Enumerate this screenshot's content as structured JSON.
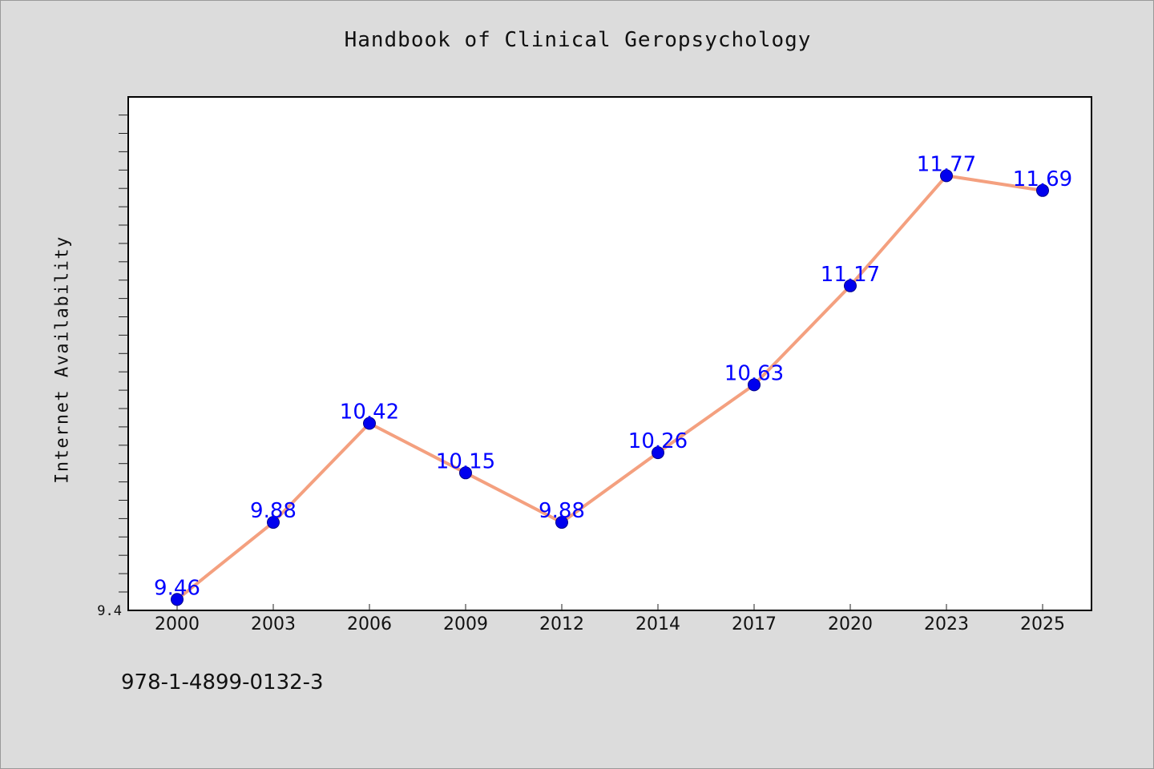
{
  "title": "Handbook of Clinical Geropsychology",
  "footer_text": "978-1-4899-0132-3",
  "chart_data": {
    "type": "line",
    "title": "Handbook of Clinical Geropsychology",
    "xlabel": "",
    "ylabel": "Internet Availability",
    "categories": [
      "2000",
      "2003",
      "2006",
      "2009",
      "2012",
      "2014",
      "2017",
      "2020",
      "2023",
      "2025"
    ],
    "series": [
      {
        "values": [
          9.46,
          9.88,
          10.42,
          10.15,
          9.88,
          10.26,
          10.63,
          11.17,
          11.77,
          11.69
        ],
        "data_labels": [
          "9.46",
          "9.88",
          "10.42",
          "10.15",
          "9.88",
          "10.26",
          "10.63",
          "11.17",
          "11.77",
          "11.69"
        ]
      }
    ],
    "ylim": [
      9.4,
      12.2
    ],
    "y_tick_labels": [
      "9.4"
    ],
    "grid": false,
    "legend": "none",
    "colors": {
      "line": "#f4a07f",
      "marker": "#0000ee",
      "label": "#0000ff",
      "background": "#dcdcdc",
      "plot_background": "#ffffff"
    }
  }
}
